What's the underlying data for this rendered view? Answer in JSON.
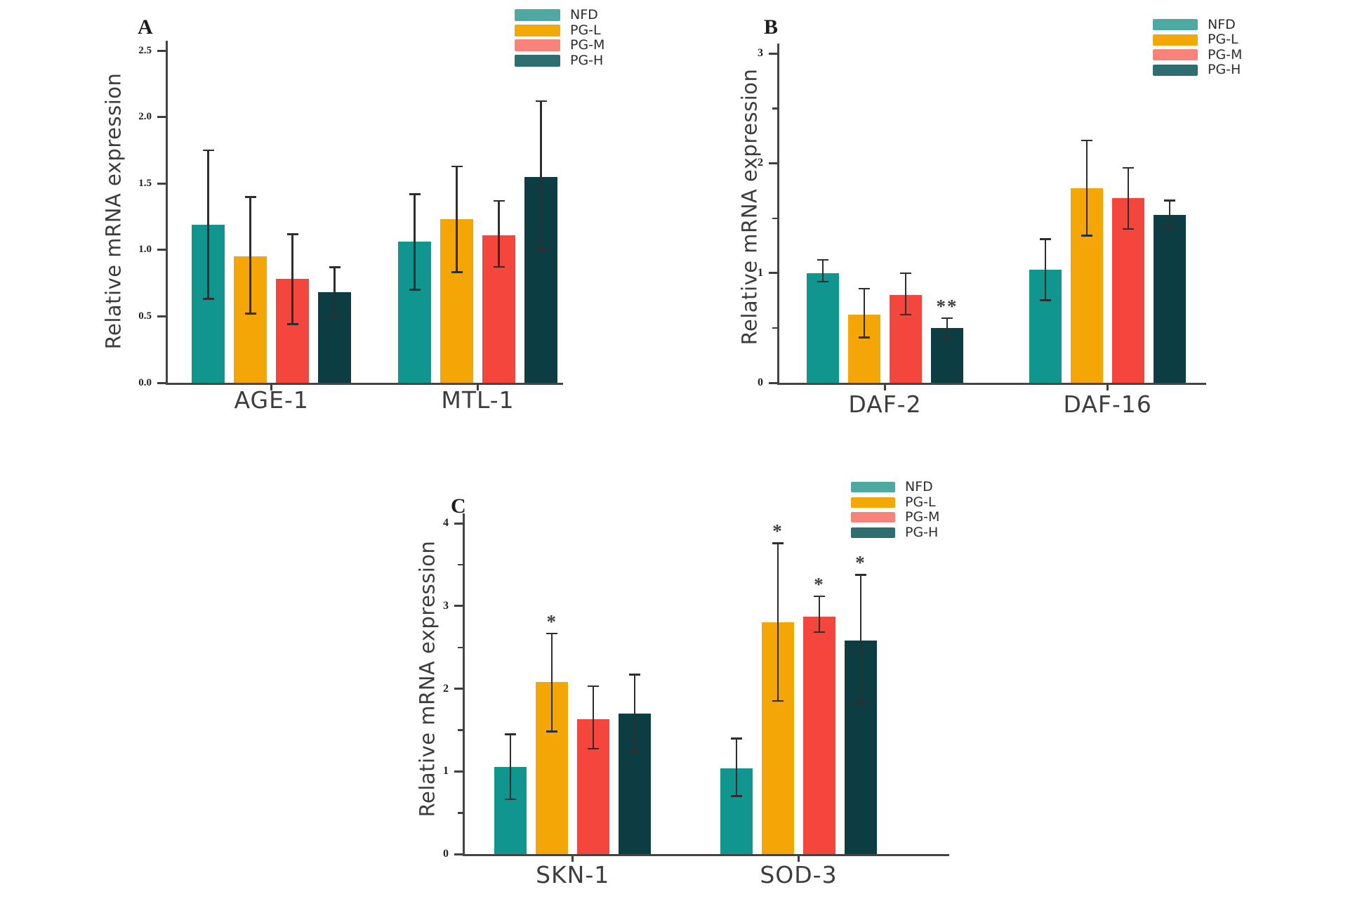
{
  "figure": {
    "background": "#ffffff",
    "axis_color": "#454545",
    "error_bar_color": "#2e2e2e",
    "legend_labels": [
      "NFD",
      "PG-L",
      "PG-M",
      "PG-H"
    ]
  },
  "chart_data": [
    {
      "type": "bar",
      "panel": "A",
      "ylabel": "Relative mRNA expression",
      "xlabel": "",
      "categories": [
        "AGE-1",
        "MTL-1"
      ],
      "ylim": [
        0,
        2.5
      ],
      "ytick_values": [
        0,
        0.5,
        1.0,
        1.5,
        2.0,
        2.5
      ],
      "ytick_labels": [
        "0.0",
        "0.5",
        "1.0",
        "1.5",
        "2.0",
        "2.5"
      ],
      "minor_tick_values": [],
      "grid": "off",
      "legend_position": "top-right",
      "series": [
        {
          "name": "NFD",
          "bar_color": "#10968E",
          "legend_color": "#4FA9A3",
          "values": [
            1.19,
            1.06
          ],
          "err_low": [
            0.63,
            0.7
          ],
          "err_high": [
            1.75,
            1.42
          ],
          "sig": [
            "",
            ""
          ]
        },
        {
          "name": "PG-L",
          "bar_color": "#F3A605",
          "legend_color": "#F2A805",
          "values": [
            0.95,
            1.23
          ],
          "err_low": [
            0.52,
            0.83
          ],
          "err_high": [
            1.4,
            1.63
          ],
          "sig": [
            "",
            ""
          ]
        },
        {
          "name": "PG-M",
          "bar_color": "#F4463C",
          "legend_color": "#F8837B",
          "values": [
            0.78,
            1.11
          ],
          "err_low": [
            0.44,
            0.87
          ],
          "err_high": [
            1.12,
            1.37
          ],
          "sig": [
            "",
            ""
          ]
        },
        {
          "name": "PG-H",
          "bar_color": "#0C3D43",
          "legend_color": "#2F6E70",
          "values": [
            0.68,
            1.55
          ],
          "err_low": [
            0.49,
            1.0
          ],
          "err_high": [
            0.87,
            2.12
          ],
          "sig": [
            "",
            ""
          ]
        }
      ]
    },
    {
      "type": "bar",
      "panel": "B",
      "ylabel": "Relative mRNA expression",
      "xlabel": "",
      "categories": [
        "DAF-2",
        "DAF-16"
      ],
      "ylim": [
        0,
        3
      ],
      "ytick_values": [
        0,
        1,
        2,
        3
      ],
      "ytick_labels": [
        "0",
        "1",
        "2",
        "3"
      ],
      "minor_tick_values": [
        0.5,
        1.5,
        2.5
      ],
      "grid": "off",
      "legend_position": "top-right",
      "series": [
        {
          "name": "NFD",
          "bar_color": "#10968E",
          "legend_color": "#4FA9A3",
          "values": [
            1.0,
            1.03
          ],
          "err_low": [
            0.92,
            0.75
          ],
          "err_high": [
            1.12,
            1.31
          ],
          "sig": [
            "",
            ""
          ]
        },
        {
          "name": "PG-L",
          "bar_color": "#F3A605",
          "legend_color": "#F2A805",
          "values": [
            0.62,
            1.77
          ],
          "err_low": [
            0.41,
            1.34
          ],
          "err_high": [
            0.86,
            2.21
          ],
          "sig": [
            "",
            ""
          ]
        },
        {
          "name": "PG-M",
          "bar_color": "#F4463C",
          "legend_color": "#F8837B",
          "values": [
            0.8,
            1.68
          ],
          "err_low": [
            0.62,
            1.4
          ],
          "err_high": [
            1.0,
            1.96
          ],
          "sig": [
            "",
            ""
          ]
        },
        {
          "name": "PG-H",
          "bar_color": "#0C3D43",
          "legend_color": "#2F6E70",
          "values": [
            0.5,
            1.53
          ],
          "err_low": [
            0.41,
            1.41
          ],
          "err_high": [
            0.59,
            1.66
          ],
          "sig": [
            "**",
            ""
          ]
        }
      ]
    },
    {
      "type": "bar",
      "panel": "C",
      "ylabel": "Relative mRNA expression",
      "xlabel": "",
      "categories": [
        "SKN-1",
        "SOD-3"
      ],
      "ylim": [
        0,
        4
      ],
      "ytick_values": [
        0,
        1,
        2,
        3,
        4
      ],
      "ytick_labels": [
        "0",
        "1",
        "2",
        "3",
        "4"
      ],
      "minor_tick_values": [
        0.5,
        1.5,
        2.5,
        3.5
      ],
      "grid": "off",
      "legend_position": "top-right",
      "series": [
        {
          "name": "NFD",
          "bar_color": "#10968E",
          "legend_color": "#4FA9A3",
          "values": [
            1.05,
            1.04
          ],
          "err_low": [
            0.66,
            0.7
          ],
          "err_high": [
            1.45,
            1.4
          ],
          "sig": [
            "",
            ""
          ]
        },
        {
          "name": "PG-L",
          "bar_color": "#F3A605",
          "legend_color": "#F2A805",
          "values": [
            2.08,
            2.8
          ],
          "err_low": [
            1.48,
            1.85
          ],
          "err_high": [
            2.67,
            3.76
          ],
          "sig": [
            "*",
            "*"
          ]
        },
        {
          "name": "PG-M",
          "bar_color": "#F4463C",
          "legend_color": "#F8837B",
          "values": [
            1.63,
            2.87
          ],
          "err_low": [
            1.27,
            2.68
          ],
          "err_high": [
            2.03,
            3.12
          ],
          "sig": [
            "",
            "*"
          ]
        },
        {
          "name": "PG-H",
          "bar_color": "#0C3D43",
          "legend_color": "#2F6E70",
          "values": [
            1.7,
            2.58
          ],
          "err_low": [
            1.24,
            1.82
          ],
          "err_high": [
            2.17,
            3.38
          ],
          "sig": [
            "",
            "*"
          ]
        }
      ]
    }
  ]
}
